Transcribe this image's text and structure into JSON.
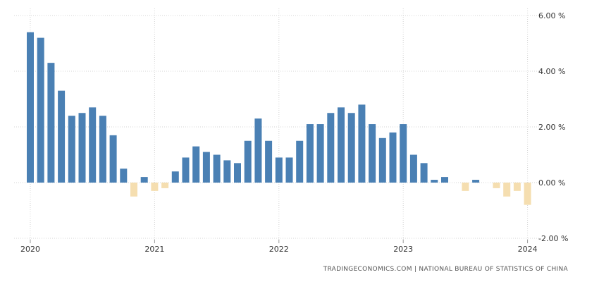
{
  "chart_data": {
    "type": "bar",
    "x": [
      "2020-01",
      "2020-02",
      "2020-03",
      "2020-04",
      "2020-05",
      "2020-06",
      "2020-07",
      "2020-08",
      "2020-09",
      "2020-10",
      "2020-11",
      "2020-12",
      "2021-01",
      "2021-02",
      "2021-03",
      "2021-04",
      "2021-05",
      "2021-06",
      "2021-07",
      "2021-08",
      "2021-09",
      "2021-10",
      "2021-11",
      "2021-12",
      "2022-01",
      "2022-02",
      "2022-03",
      "2022-04",
      "2022-05",
      "2022-06",
      "2022-07",
      "2022-08",
      "2022-09",
      "2022-10",
      "2022-11",
      "2022-12",
      "2023-01",
      "2023-02",
      "2023-03",
      "2023-04",
      "2023-05",
      "2023-06",
      "2023-07",
      "2023-08",
      "2023-09",
      "2023-10",
      "2023-11",
      "2023-12",
      "2024-01"
    ],
    "values": [
      5.4,
      5.2,
      4.3,
      3.3,
      2.4,
      2.5,
      2.7,
      2.4,
      1.7,
      0.5,
      -0.5,
      0.2,
      -0.3,
      -0.2,
      0.4,
      0.9,
      1.3,
      1.1,
      1.0,
      0.8,
      0.7,
      1.5,
      2.3,
      1.5,
      0.9,
      0.9,
      1.5,
      2.1,
      2.1,
      2.5,
      2.7,
      2.5,
      2.8,
      2.1,
      1.6,
      1.8,
      2.1,
      1.0,
      0.7,
      0.1,
      0.2,
      0.0,
      -0.3,
      0.1,
      0.0,
      -0.2,
      -0.5,
      -0.3,
      -0.8
    ],
    "xlim": [
      "2020-01",
      "2024-01"
    ],
    "x_ticks": [
      "2020",
      "2021",
      "2022",
      "2023",
      "2024"
    ],
    "ylim": [
      -2,
      6
    ],
    "y_ticks": [
      "6.00 %",
      "4.00 %",
      "2.00 %",
      "0.00 %",
      "-2.00 %"
    ],
    "y_axis_side": "right",
    "grid": true,
    "positive_color": "#4a80b4",
    "negative_color": "#f5deb0",
    "source": "TRADINGECONOMICS.COM | NATIONAL BUREAU OF STATISTICS OF CHINA"
  }
}
